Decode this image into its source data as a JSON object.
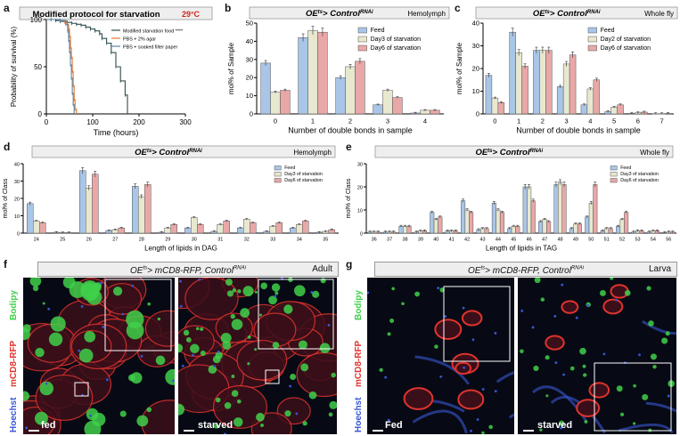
{
  "panel_letters": {
    "a": "a",
    "b": "b",
    "c": "c",
    "d": "d",
    "e": "e",
    "f": "f",
    "g": "g"
  },
  "colors": {
    "feed": "#a9c6e8",
    "day3": "#e7e8cf",
    "day6": "#e9a8a8",
    "surv_food": "#2f4f4f",
    "surv_agar": "#e9772f",
    "surv_pbs": "#5a86a8",
    "temp": "#d0281f",
    "bodipy": "#3fd04a",
    "mcd8": "#e0332d",
    "hoechst": "#3a56d4"
  },
  "chart_data": [
    {
      "panel": "a",
      "type": "line",
      "title": "Modified protocol for starvation",
      "temperature": "29°C",
      "xlabel": "Time (hours)",
      "ylabel": "Probability of survival (%)",
      "xlim": [
        0,
        300
      ],
      "ylim": [
        0,
        100
      ],
      "xticks": [
        "0",
        "100",
        "200",
        "300"
      ],
      "yticks": [
        "0",
        "50",
        "100"
      ],
      "legend": [
        "Modified starvation food ****",
        "PBS + 2% agar",
        "PBS + soaked filter paper"
      ],
      "series": [
        {
          "name": "Modified starvation food ****",
          "x": [
            0,
            10,
            20,
            30,
            45,
            55,
            65,
            75,
            85,
            95,
            105,
            115,
            120,
            130,
            140,
            150,
            160,
            170,
            175
          ],
          "y": [
            100,
            100,
            99,
            98,
            97,
            96,
            95,
            94,
            92,
            90,
            88,
            85,
            80,
            75,
            65,
            50,
            35,
            20,
            0
          ]
        },
        {
          "name": "PBS + 2% agar",
          "x": [
            0,
            30,
            40,
            45,
            48,
            50,
            52,
            54,
            56,
            58,
            60,
            62,
            65
          ],
          "y": [
            100,
            99,
            97,
            95,
            90,
            82,
            70,
            60,
            45,
            30,
            15,
            5,
            0
          ]
        },
        {
          "name": "PBS + soaked filter paper",
          "x": [
            0,
            30,
            42,
            46,
            48,
            50,
            52,
            54,
            56,
            58,
            60
          ],
          "y": [
            100,
            99,
            95,
            88,
            78,
            66,
            52,
            38,
            22,
            10,
            0
          ]
        }
      ]
    },
    {
      "panel": "b",
      "type": "bar",
      "title_main": "OE",
      "title_sup1": "ts",
      "title_mid": "> Control",
      "title_sup2": "RNAi",
      "title_right": "Hemolymph",
      "xlabel": "Number of double bonds in sample",
      "ylabel": "mol% of Sample",
      "ylim": [
        0,
        50
      ],
      "yticks": [
        "0",
        "10",
        "20",
        "30",
        "40",
        "50"
      ],
      "categories": [
        "0",
        "1",
        "2",
        "3",
        "4"
      ],
      "series": [
        {
          "name": "Feed",
          "values": [
            28,
            42,
            20,
            5,
            0.5
          ]
        },
        {
          "name": "Day3 of starvation",
          "values": [
            12,
            46,
            26,
            13,
            2
          ]
        },
        {
          "name": "Day6 of starvation",
          "values": [
            13,
            45,
            29,
            9,
            2
          ]
        }
      ]
    },
    {
      "panel": "c",
      "type": "bar",
      "title_main": "OE",
      "title_sup1": "ts",
      "title_mid": "> Control",
      "title_sup2": "RNAi",
      "title_right": "Whole fly",
      "xlabel": "Number of double bonds in sample",
      "ylabel": "mol% of Sample",
      "ylim": [
        0,
        40
      ],
      "yticks": [
        "0",
        "10",
        "20",
        "30",
        "40"
      ],
      "categories": [
        "0",
        "1",
        "2",
        "3",
        "4",
        "5",
        "6",
        "7"
      ],
      "series": [
        {
          "name": "Feed",
          "values": [
            17,
            36,
            28,
            12,
            4,
            1,
            0.3,
            0.1
          ]
        },
        {
          "name": "Day2 of starvation",
          "values": [
            7,
            27,
            28,
            22,
            11,
            3,
            0.5,
            0.1
          ]
        },
        {
          "name": "Day6 of starvation",
          "values": [
            5,
            21,
            28,
            26,
            15,
            4,
            0.8,
            0.2
          ]
        }
      ]
    },
    {
      "panel": "d",
      "type": "bar",
      "title_main": "OE",
      "title_sup1": "ts",
      "title_mid": "> Control",
      "title_sup2": "RNAi",
      "title_right": "Hemolymph",
      "xlabel": "Length of lipids in DAG",
      "ylabel": "mol% of Class",
      "ylim": [
        0,
        40
      ],
      "yticks": [
        "0",
        "10",
        "20",
        "30",
        "40"
      ],
      "categories": [
        "24",
        "25",
        "26",
        "27",
        "28",
        "29",
        "30",
        "31",
        "32",
        "33",
        "34",
        "35"
      ],
      "series": [
        {
          "name": "Feed",
          "values": [
            17,
            0.5,
            36,
            1.5,
            27,
            0.5,
            3,
            1,
            3,
            1,
            3,
            0.5
          ]
        },
        {
          "name": "Day3 of starvation",
          "values": [
            7,
            0.3,
            26,
            2,
            21,
            3,
            9,
            5,
            8,
            4,
            5,
            1
          ]
        },
        {
          "name": "Day6 of starvation",
          "values": [
            6,
            0.3,
            34,
            3,
            28,
            5,
            5,
            7,
            6,
            6,
            7,
            2
          ]
        }
      ]
    },
    {
      "panel": "e",
      "type": "bar",
      "title_main": "OE",
      "title_sup1": "ts",
      "title_mid": "> Control",
      "title_sup2": "RNAi",
      "title_right": "Whole fly",
      "xlabel": "Length of lipids in TAG",
      "ylabel": "mol% of Class",
      "ylim": [
        0,
        30
      ],
      "yticks": [
        "0",
        "10",
        "20",
        "30"
      ],
      "categories": [
        "36",
        "37",
        "38",
        "39",
        "40",
        "41",
        "42",
        "43",
        "44",
        "45",
        "46",
        "47",
        "48",
        "49",
        "50",
        "51",
        "52",
        "53",
        "54",
        "56"
      ],
      "series": [
        {
          "name": "Feed",
          "values": [
            0.5,
            0.5,
            3,
            0.5,
            9,
            1,
            14,
            1.5,
            13,
            2,
            20,
            5,
            21,
            2,
            7,
            1,
            3,
            0.5,
            0.5,
            0.3
          ]
        },
        {
          "name": "Day3 of starvation",
          "values": [
            0.5,
            0.5,
            3,
            1,
            6,
            1,
            10,
            2,
            10,
            3,
            20,
            6,
            22,
            4,
            13,
            2,
            6,
            1,
            1,
            0.5
          ]
        },
        {
          "name": "Day6 of starvation",
          "values": [
            0.5,
            0.5,
            3,
            1,
            7,
            1,
            9,
            2,
            9,
            3,
            14,
            5,
            21,
            4,
            21,
            2,
            9,
            1,
            1,
            0.5
          ]
        }
      ]
    }
  ],
  "micro_f": {
    "title_main": "OE",
    "title_sup1": "ts",
    "title_mid": "> mCD8-RFP, Control",
    "title_sup2": "RNAi",
    "title_right": "Adult",
    "channels": [
      "Bodipy",
      "mCD8-RFP",
      "Hoechst"
    ],
    "left_label": "fed",
    "right_label": "starved"
  },
  "micro_g": {
    "title_main": "OE",
    "title_sup1": "ts",
    "title_mid": "> mCD8-RFP, Control",
    "title_sup2": "RNAi",
    "title_right": "Larva",
    "channels": [
      "Bodipy",
      "mCD8-RFP",
      "Hoechst"
    ],
    "left_label": "Fed",
    "right_label": "starved"
  }
}
